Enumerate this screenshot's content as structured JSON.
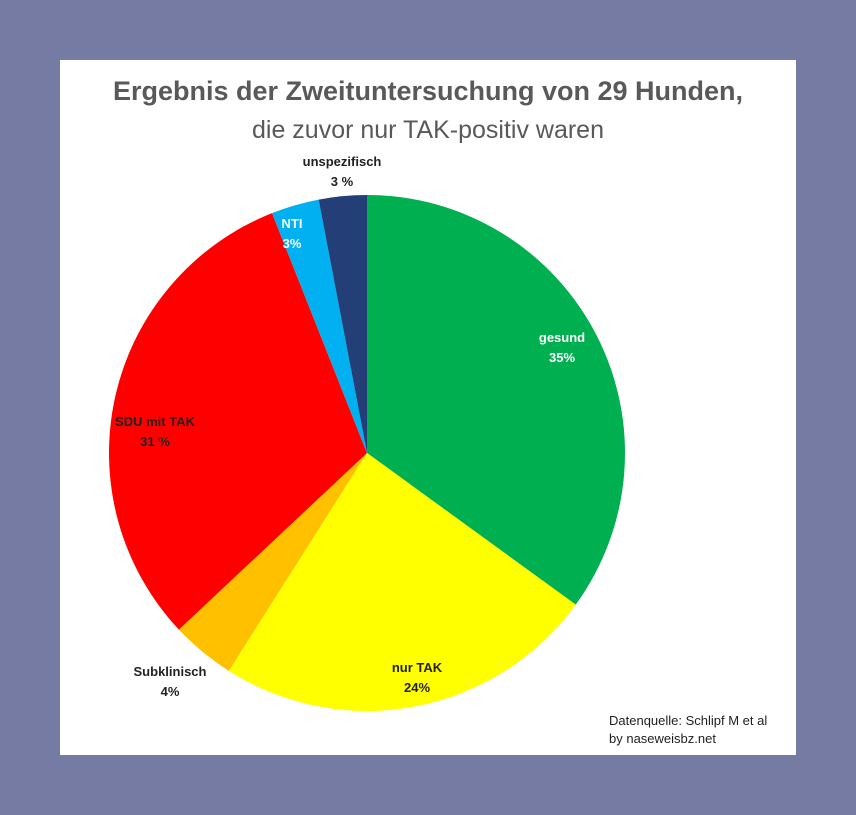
{
  "chart_data": {
    "type": "pie",
    "title": "Ergebnis der Zweituntersuchung von 29 Hunden,",
    "subtitle": "die zuvor nur TAK-positiv waren",
    "slices": [
      {
        "label": "gesund",
        "value": 35,
        "value_label": "35%",
        "color": "#00b050"
      },
      {
        "label": "nur TAK",
        "value": 24,
        "value_label": "24%",
        "color": "#ffff00"
      },
      {
        "label": "Subklinisch",
        "value": 4,
        "value_label": "4%",
        "color": "#ffc000"
      },
      {
        "label": "SDU mit TAK",
        "value": 31,
        "value_label": "31 %",
        "color": "#ff0000"
      },
      {
        "label": "NTI",
        "value": 3,
        "value_label": "3%",
        "color": "#00b0f0"
      },
      {
        "label": "unspezifisch",
        "value": 3,
        "value_label": "3 %",
        "color": "#243f78"
      }
    ],
    "legend": "none",
    "start_angle": "12 o'clock",
    "direction": "clockwise"
  },
  "footer": {
    "source_line1": "Datenquelle: Schlipf M et al",
    "source_line2": "by naseweisbz.net"
  },
  "colors": {
    "background": "#757ba3",
    "panel": "#ffffff",
    "title_text": "#595959"
  }
}
